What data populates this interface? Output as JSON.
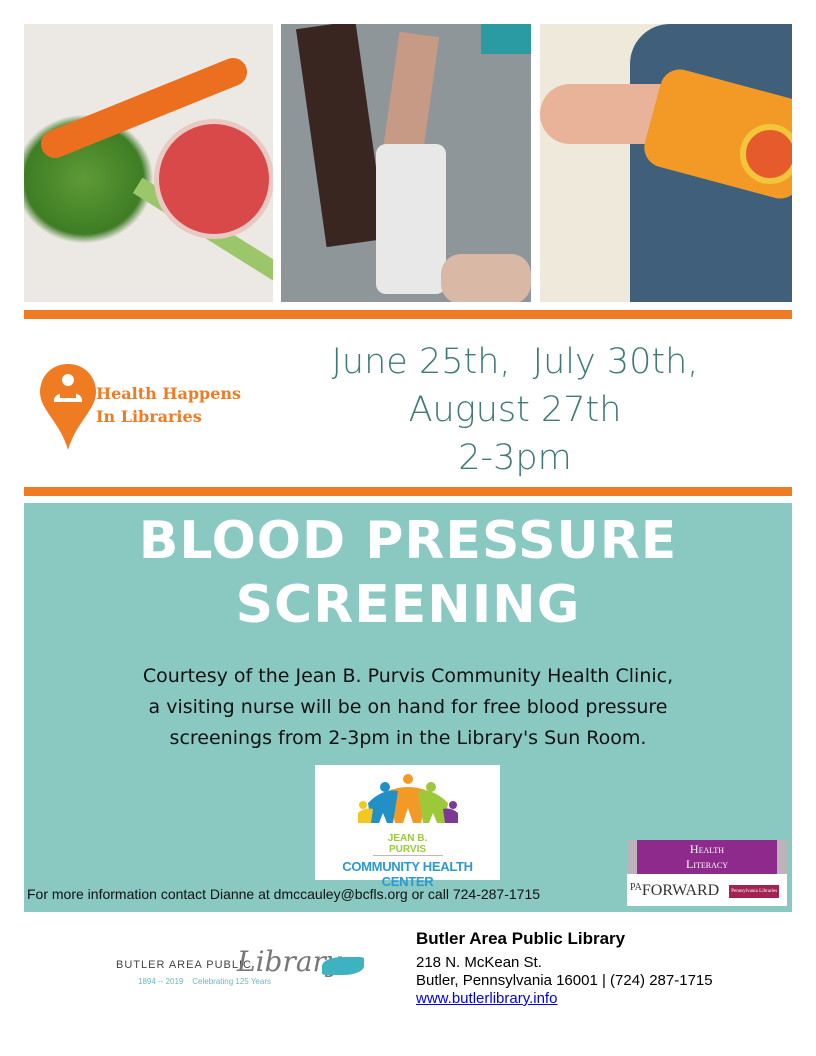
{
  "photos": [
    "carrot-celery-juice-photo",
    "blood-pressure-cuff-photo",
    "yoga-mat-photo"
  ],
  "colors": {
    "orange": "#ef7b22",
    "teal": "#8ac8c2",
    "date_text": "#3f7a78",
    "purple": "#8e2a8c"
  },
  "hhil_logo": {
    "line1": "Health Happens",
    "line2": "In Libraries"
  },
  "dates": {
    "line1": "June 25th,  July 30th,",
    "line2": "August 27th",
    "line3": "2-3pm"
  },
  "event": {
    "title_line1": "BLOOD PRESSURE",
    "title_line2": "SCREENING",
    "desc_line1": "Courtesy of the Jean B. Purvis Community Health Clinic,",
    "desc_line2": "a visiting nurse will be on hand for free blood pressure",
    "desc_line3": "screenings from 2-3pm in the Library's Sun Room."
  },
  "clinic_logo": {
    "line1": "JEAN B. PURVIS",
    "line2": "COMMUNITY HEALTH CENTER"
  },
  "contact": "For more information contact Dianne at dmccauley@bcfls.org or call 724-287-1715",
  "pa_logo": {
    "line1": "Health",
    "line2": "Literacy",
    "pa": "PA",
    "forward": "FORWARD",
    "partner": "Pennsylvania Libraries"
  },
  "library_logo": {
    "name": "BUTLER AREA PUBLIC",
    "script": "Library",
    "tagline": "1894 -- 2019    Celebrating 125 Years"
  },
  "library": {
    "name": "Butler Area Public Library",
    "address": "218 N. McKean St.",
    "city": "Butler, Pennsylvania 16001 | (724) 287-1715",
    "url": "www.butlerlibrary.info"
  }
}
